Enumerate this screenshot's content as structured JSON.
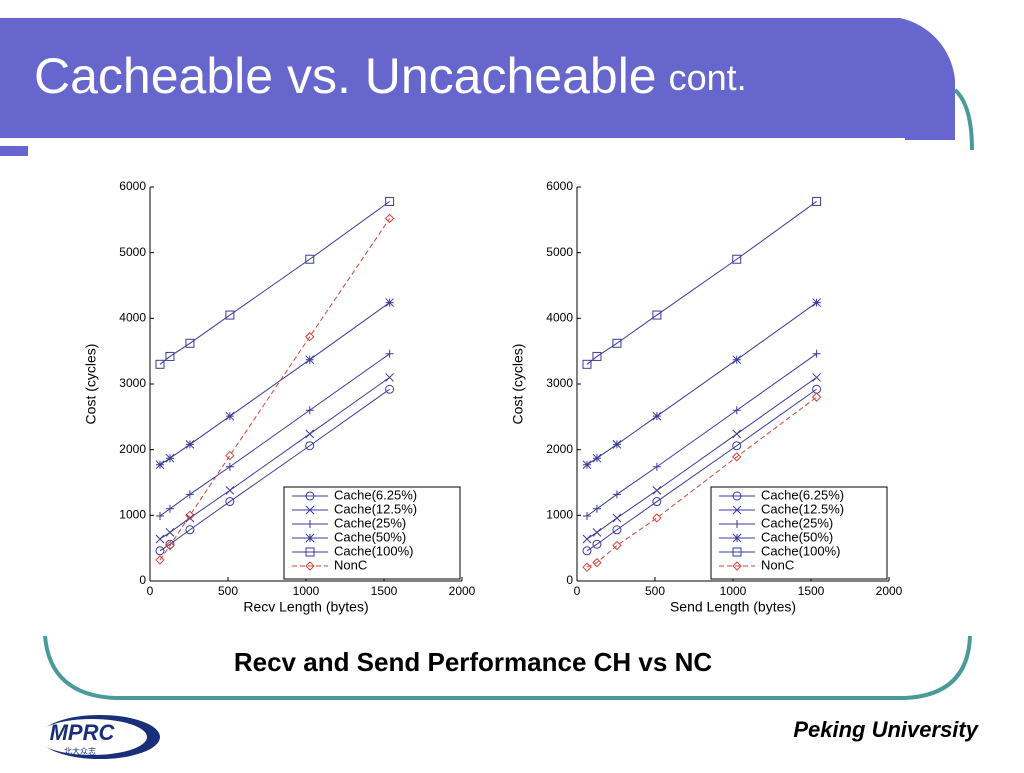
{
  "slide": {
    "title": "Cacheable vs. Uncacheable",
    "title_suffix": "cont.",
    "caption": "Recv and Send Performance CH vs NC",
    "footer": "Peking University",
    "logo": "MPRC",
    "logo_sub": "北大众志"
  },
  "chart_data": [
    {
      "type": "line",
      "xlabel": "Recv Length (bytes)",
      "ylabel": "Cost (cycles)",
      "x": [
        64,
        128,
        256,
        512,
        1024,
        1536
      ],
      "xlim": [
        0,
        2000
      ],
      "xticks": [
        0,
        500,
        1000,
        1500,
        2000
      ],
      "ylim": [
        0,
        6000
      ],
      "yticks": [
        0,
        1000,
        2000,
        3000,
        4000,
        5000,
        6000
      ],
      "legend": "lower right",
      "series": [
        {
          "name": "Cache(6.25%)",
          "color": "#3a3a9c",
          "marker": "circle",
          "dashed": false,
          "values": [
            460,
            560,
            780,
            1210,
            2060,
            2920
          ]
        },
        {
          "name": "Cache(12.5%)",
          "color": "#3a3a9c",
          "marker": "x",
          "dashed": false,
          "values": [
            640,
            740,
            960,
            1380,
            2240,
            3100
          ]
        },
        {
          "name": "Cache(25%)",
          "color": "#3a3a9c",
          "marker": "plus",
          "dashed": false,
          "values": [
            990,
            1100,
            1320,
            1740,
            2600,
            3460
          ]
        },
        {
          "name": "Cache(50%)",
          "color": "#3a3a9c",
          "marker": "star",
          "dashed": false,
          "values": [
            1770,
            1870,
            2080,
            2510,
            3370,
            4240
          ]
        },
        {
          "name": "Cache(100%)",
          "color": "#3a3a9c",
          "marker": "square",
          "dashed": false,
          "values": [
            3300,
            3420,
            3620,
            4050,
            4900,
            5780
          ]
        },
        {
          "name": "NonC",
          "color": "#d0453c",
          "marker": "diamond",
          "dashed": true,
          "values": [
            320,
            540,
            1000,
            1910,
            3720,
            5520
          ]
        }
      ]
    },
    {
      "type": "line",
      "xlabel": "Send Length (bytes)",
      "ylabel": "Cost (cycles)",
      "x": [
        64,
        128,
        256,
        512,
        1024,
        1536
      ],
      "xlim": [
        0,
        2000
      ],
      "xticks": [
        0,
        500,
        1000,
        1500,
        2000
      ],
      "ylim": [
        0,
        6000
      ],
      "yticks": [
        0,
        1000,
        2000,
        3000,
        4000,
        5000,
        6000
      ],
      "legend": "lower right",
      "series": [
        {
          "name": "Cache(6.25%)",
          "color": "#3a3a9c",
          "marker": "circle",
          "dashed": false,
          "values": [
            460,
            560,
            780,
            1210,
            2060,
            2920
          ]
        },
        {
          "name": "Cache(12.5%)",
          "color": "#3a3a9c",
          "marker": "x",
          "dashed": false,
          "values": [
            640,
            740,
            960,
            1380,
            2240,
            3100
          ]
        },
        {
          "name": "Cache(25%)",
          "color": "#3a3a9c",
          "marker": "plus",
          "dashed": false,
          "values": [
            990,
            1100,
            1320,
            1740,
            2600,
            3460
          ]
        },
        {
          "name": "Cache(50%)",
          "color": "#3a3a9c",
          "marker": "star",
          "dashed": false,
          "values": [
            1770,
            1870,
            2080,
            2510,
            3370,
            4240
          ]
        },
        {
          "name": "Cache(100%)",
          "color": "#3a3a9c",
          "marker": "square",
          "dashed": false,
          "values": [
            3300,
            3420,
            3620,
            4050,
            4900,
            5780
          ]
        },
        {
          "name": "NonC",
          "color": "#d0453c",
          "marker": "diamond",
          "dashed": true,
          "values": [
            210,
            280,
            540,
            960,
            1890,
            2800
          ]
        }
      ]
    }
  ]
}
